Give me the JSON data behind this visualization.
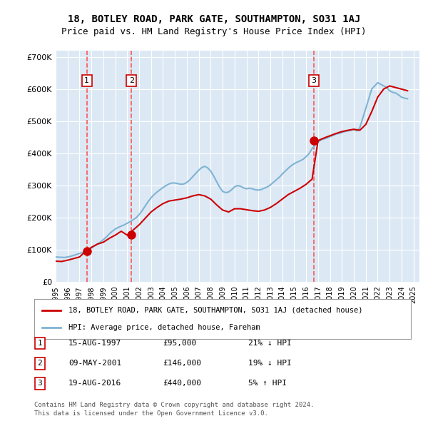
{
  "title": "18, BOTLEY ROAD, PARK GATE, SOUTHAMPTON, SO31 1AJ",
  "subtitle": "Price paid vs. HM Land Registry's House Price Index (HPI)",
  "legend_property": "18, BOTLEY ROAD, PARK GATE, SOUTHAMPTON, SO31 1AJ (detached house)",
  "legend_hpi": "HPI: Average price, detached house, Fareham",
  "footer1": "Contains HM Land Registry data © Crown copyright and database right 2024.",
  "footer2": "This data is licensed under the Open Government Licence v3.0.",
  "ylabel": "",
  "xlim": [
    1995.0,
    2025.5
  ],
  "ylim": [
    0,
    720000
  ],
  "yticks": [
    0,
    100000,
    200000,
    300000,
    400000,
    500000,
    600000,
    700000
  ],
  "ytick_labels": [
    "£0",
    "£100K",
    "£200K",
    "£300K",
    "£400K",
    "£500K",
    "£600K",
    "£700K"
  ],
  "xticks": [
    1995,
    1996,
    1997,
    1998,
    1999,
    2000,
    2001,
    2002,
    2003,
    2004,
    2005,
    2006,
    2007,
    2008,
    2009,
    2010,
    2011,
    2012,
    2013,
    2014,
    2015,
    2016,
    2017,
    2018,
    2019,
    2020,
    2021,
    2022,
    2023,
    2024,
    2025
  ],
  "property_color": "#cc0000",
  "hpi_color": "#7fb3d3",
  "sale_marker_color": "#cc0000",
  "dashed_line_color": "#ff4444",
  "background_color": "#dce9f5",
  "plot_bg_color": "#dce9f5",
  "legend_box_color": "#ffffff",
  "sale_events": [
    {
      "date_label": "15-AUG-1997",
      "year": 1997.62,
      "price": 95000,
      "pct": "21%",
      "dir": "↓",
      "num": 1
    },
    {
      "date_label": "09-MAY-2001",
      "year": 2001.36,
      "price": 146000,
      "pct": "19%",
      "dir": "↓",
      "num": 2
    },
    {
      "date_label": "19-AUG-2016",
      "year": 2016.63,
      "price": 440000,
      "pct": "5%",
      "dir": "↑",
      "num": 3
    }
  ],
  "hpi_data_x": [
    1995.0,
    1995.25,
    1995.5,
    1995.75,
    1996.0,
    1996.25,
    1996.5,
    1996.75,
    1997.0,
    1997.25,
    1997.5,
    1997.75,
    1998.0,
    1998.25,
    1998.5,
    1998.75,
    1999.0,
    1999.25,
    1999.5,
    1999.75,
    2000.0,
    2000.25,
    2000.5,
    2000.75,
    2001.0,
    2001.25,
    2001.5,
    2001.75,
    2002.0,
    2002.25,
    2002.5,
    2002.75,
    2003.0,
    2003.25,
    2003.5,
    2003.75,
    2004.0,
    2004.25,
    2004.5,
    2004.75,
    2005.0,
    2005.25,
    2005.5,
    2005.75,
    2006.0,
    2006.25,
    2006.5,
    2006.75,
    2007.0,
    2007.25,
    2007.5,
    2007.75,
    2008.0,
    2008.25,
    2008.5,
    2008.75,
    2009.0,
    2009.25,
    2009.5,
    2009.75,
    2010.0,
    2010.25,
    2010.5,
    2010.75,
    2011.0,
    2011.25,
    2011.5,
    2011.75,
    2012.0,
    2012.25,
    2012.5,
    2012.75,
    2013.0,
    2013.25,
    2013.5,
    2013.75,
    2014.0,
    2014.25,
    2014.5,
    2014.75,
    2015.0,
    2015.25,
    2015.5,
    2015.75,
    2016.0,
    2016.25,
    2016.5,
    2016.75,
    2017.0,
    2017.25,
    2017.5,
    2017.75,
    2018.0,
    2018.25,
    2018.5,
    2018.75,
    2019.0,
    2019.25,
    2019.5,
    2019.75,
    2020.0,
    2020.25,
    2020.5,
    2020.75,
    2021.0,
    2021.25,
    2021.5,
    2021.75,
    2022.0,
    2022.25,
    2022.5,
    2022.75,
    2023.0,
    2023.25,
    2023.5,
    2023.75,
    2024.0,
    2024.25,
    2024.5
  ],
  "hpi_data_y": [
    78000,
    77500,
    77000,
    76500,
    78000,
    80000,
    83000,
    86000,
    89000,
    92000,
    96000,
    100000,
    106000,
    112000,
    118000,
    124000,
    132000,
    140000,
    150000,
    158000,
    165000,
    170000,
    174000,
    178000,
    183000,
    188000,
    194000,
    200000,
    210000,
    222000,
    236000,
    250000,
    262000,
    272000,
    280000,
    287000,
    294000,
    300000,
    305000,
    308000,
    308000,
    306000,
    304000,
    305000,
    310000,
    318000,
    328000,
    338000,
    348000,
    356000,
    360000,
    355000,
    345000,
    330000,
    312000,
    295000,
    282000,
    278000,
    280000,
    287000,
    296000,
    300000,
    298000,
    293000,
    290000,
    292000,
    290000,
    287000,
    286000,
    288000,
    292000,
    296000,
    302000,
    310000,
    318000,
    326000,
    336000,
    345000,
    354000,
    362000,
    368000,
    373000,
    377000,
    382000,
    390000,
    400000,
    415000,
    425000,
    435000,
    442000,
    445000,
    448000,
    452000,
    456000,
    460000,
    462000,
    465000,
    468000,
    470000,
    472000,
    475000,
    470000,
    480000,
    510000,
    540000,
    570000,
    600000,
    610000,
    620000,
    615000,
    610000,
    605000,
    595000,
    590000,
    588000,
    582000,
    575000,
    572000,
    570000
  ],
  "property_data_x": [
    1995.0,
    1995.5,
    1996.0,
    1996.5,
    1997.0,
    1997.5,
    1998.0,
    1998.5,
    1999.0,
    1999.5,
    2000.0,
    2000.5,
    2001.0,
    2001.5,
    2002.0,
    2002.5,
    2003.0,
    2003.5,
    2004.0,
    2004.5,
    2005.0,
    2005.5,
    2006.0,
    2006.5,
    2007.0,
    2007.5,
    2008.0,
    2008.5,
    2009.0,
    2009.5,
    2010.0,
    2010.5,
    2011.0,
    2011.5,
    2012.0,
    2012.5,
    2013.0,
    2013.5,
    2014.0,
    2014.5,
    2015.0,
    2015.5,
    2016.0,
    2016.5,
    2017.0,
    2017.5,
    2018.0,
    2018.5,
    2019.0,
    2019.5,
    2020.0,
    2020.5,
    2021.0,
    2021.5,
    2022.0,
    2022.5,
    2023.0,
    2023.5,
    2024.0,
    2024.5
  ],
  "property_data_y": [
    65000,
    64000,
    68000,
    73000,
    78000,
    95000,
    108000,
    118000,
    124000,
    136000,
    146000,
    158000,
    146000,
    162000,
    178000,
    198000,
    218000,
    232000,
    244000,
    252000,
    255000,
    258000,
    262000,
    268000,
    272000,
    268000,
    258000,
    240000,
    224000,
    218000,
    228000,
    228000,
    225000,
    222000,
    220000,
    224000,
    232000,
    244000,
    258000,
    272000,
    282000,
    292000,
    304000,
    320000,
    440000,
    448000,
    455000,
    462000,
    468000,
    472000,
    475000,
    472000,
    490000,
    530000,
    575000,
    600000,
    610000,
    605000,
    600000,
    595000
  ]
}
